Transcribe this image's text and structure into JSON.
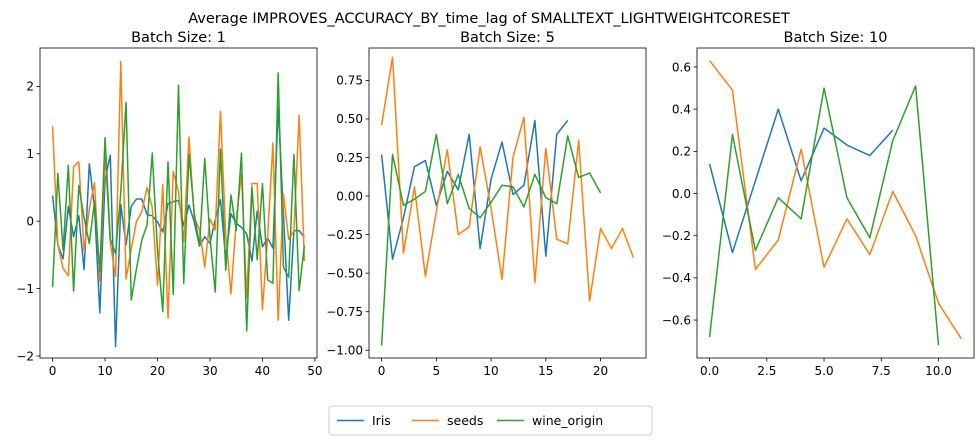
{
  "chart_data": {
    "type": "line",
    "title": "Average IMPROVES_ACCURACY_BY_time_lag of SMALLTEXT_LIGHTWEIGHTCORESET",
    "series_styles": [
      {
        "name": "Iris",
        "color": "#1f77b4"
      },
      {
        "name": "seeds",
        "color": "#ff7f0e"
      },
      {
        "name": "wine_origin",
        "color": "#2ca02c"
      }
    ],
    "legend_placement": "bottom-center",
    "grid": false,
    "subplots": [
      {
        "title": "Batch Size: 1",
        "xlim": [
          -2.4,
          50.4
        ],
        "ylim": [
          -2.03,
          2.57
        ],
        "xticks": [
          0,
          10,
          20,
          30,
          40,
          50
        ],
        "xtick_labels": [
          "0",
          "10",
          "20",
          "30",
          "40",
          "50"
        ],
        "yticks": [
          -2,
          -1,
          0,
          1,
          2
        ],
        "ytick_labels": [
          "−2",
          "−1",
          "0",
          "1",
          "2"
        ],
        "series": [
          {
            "name": "Iris",
            "x": [
              0,
              1,
              2,
              3,
              4,
              5,
              6,
              7,
              8,
              9,
              10,
              11,
              12,
              13,
              14,
              15,
              16,
              17,
              18,
              19,
              20,
              21,
              22,
              23,
              24,
              25,
              26,
              27,
              28,
              29,
              30,
              31,
              32,
              33,
              34,
              35,
              36,
              37,
              38,
              39,
              40,
              41,
              42,
              43,
              44,
              45,
              46,
              47,
              48
            ],
            "y": [
              0.38,
              -0.35,
              -0.56,
              0.22,
              -0.23,
              0.08,
              -0.72,
              0.85,
              0.2,
              -1.36,
              0.62,
              0.98,
              -1.86,
              0.25,
              -0.35,
              0.22,
              0.33,
              0.33,
              0.1,
              0.08,
              -0.01,
              -0.16,
              0.26,
              0.29,
              0.31,
              -0.07,
              0.24,
              -0.01,
              -0.37,
              -0.23,
              -0.33,
              0.02,
              0.32,
              -0.56,
              0.11,
              -0.03,
              -0.09,
              -0.19,
              -0.59,
              0.15,
              -0.38,
              -0.25,
              -0.4,
              1.7,
              0.12,
              -1.47,
              -0.14,
              -0.14,
              -0.24
            ]
          },
          {
            "name": "seeds",
            "x": [
              0,
              1,
              2,
              3,
              4,
              5,
              6,
              7,
              8,
              9,
              10,
              11,
              12,
              13,
              14,
              15,
              16,
              17,
              18,
              19,
              20,
              21,
              22,
              23,
              24,
              25,
              26,
              27,
              28,
              29,
              30,
              31,
              32,
              33,
              34,
              35,
              36,
              37,
              38,
              39,
              40,
              41,
              42,
              43,
              44,
              45,
              46,
              47,
              48
            ],
            "y": [
              1.41,
              -0.35,
              -0.7,
              -0.81,
              0.81,
              0.88,
              -0.44,
              0.18,
              0.57,
              -0.89,
              1.0,
              -0.32,
              -0.82,
              2.37,
              -0.86,
              -0.41,
              0.0,
              0.14,
              0.5,
              0.2,
              -0.95,
              0.54,
              -1.44,
              0.74,
              0.44,
              -0.3,
              1.25,
              0.05,
              -0.12,
              -0.68,
              0.03,
              -0.13,
              1.63,
              -0.2,
              -1.08,
              0.0,
              0.71,
              -1.13,
              0.56,
              0.56,
              -1.31,
              -0.23,
              1.16,
              -1.47,
              0.4,
              -0.27,
              -0.14,
              1.57,
              -0.59
            ]
          },
          {
            "name": "wine_origin",
            "x": [
              0,
              1,
              2,
              3,
              4,
              5,
              6,
              7,
              8,
              9,
              10,
              11,
              12,
              13,
              14,
              15,
              16,
              17,
              18,
              19,
              20,
              21,
              22,
              23,
              24,
              25,
              26,
              27,
              28,
              29,
              30,
              31,
              32,
              33,
              34,
              35,
              36,
              37,
              38,
              39,
              40,
              41,
              42,
              43,
              44,
              45,
              46,
              47,
              48
            ],
            "y": [
              -0.98,
              0.71,
              -0.43,
              0.83,
              -1.04,
              0.53,
              0.05,
              -0.33,
              0.3,
              -0.75,
              1.24,
              -0.27,
              -0.48,
              0.43,
              1.76,
              -1.17,
              -0.7,
              -0.28,
              -0.06,
              1.01,
              -0.44,
              -1.34,
              0.88,
              -1.09,
              2.02,
              -0.92,
              0.99,
              0.12,
              -0.36,
              0.93,
              -0.24,
              -1.05,
              1.07,
              -0.73,
              0.39,
              -0.14,
              1.01,
              -1.63,
              0.5,
              -0.57,
              0.56,
              -0.87,
              -0.92,
              2.2,
              -0.68,
              -0.83,
              0.99,
              -1.03,
              -0.36
            ]
          }
        ]
      },
      {
        "title": "Batch Size: 5",
        "xlim": [
          -1.15,
          24.15
        ],
        "ylim": [
          -1.05,
          0.96
        ],
        "xticks": [
          0,
          5,
          10,
          15,
          20
        ],
        "xtick_labels": [
          "0",
          "5",
          "10",
          "15",
          "20"
        ],
        "yticks": [
          -1.0,
          -0.75,
          -0.5,
          -0.25,
          0.0,
          0.25,
          0.5,
          0.75
        ],
        "ytick_labels": [
          "−1.00",
          "−0.75",
          "−0.50",
          "−0.25",
          "0.00",
          "0.25",
          "0.50",
          "0.75"
        ],
        "series": [
          {
            "name": "Iris",
            "x": [
              0,
              1,
              2,
              3,
              4,
              5,
              6,
              7,
              8,
              9,
              10,
              11,
              12,
              13,
              14,
              15,
              16,
              17
            ],
            "y": [
              0.27,
              -0.41,
              -0.14,
              0.19,
              0.23,
              -0.06,
              0.16,
              0.04,
              0.4,
              -0.34,
              0.11,
              0.35,
              0.01,
              0.07,
              0.49,
              -0.39,
              0.4,
              0.49
            ]
          },
          {
            "name": "seeds",
            "x": [
              0,
              1,
              2,
              3,
              4,
              5,
              6,
              7,
              8,
              9,
              10,
              11,
              12,
              13,
              14,
              15,
              16,
              17,
              18,
              19,
              20,
              21,
              22,
              23
            ],
            "y": [
              0.46,
              0.9,
              -0.37,
              0.06,
              -0.52,
              -0.1,
              0.3,
              -0.25,
              -0.2,
              0.32,
              -0.08,
              -0.54,
              0.25,
              0.51,
              -0.56,
              0.31,
              -0.28,
              -0.31,
              0.36,
              -0.68,
              -0.21,
              -0.34,
              -0.21,
              -0.4
            ]
          },
          {
            "name": "wine_origin",
            "x": [
              0,
              1,
              2,
              3,
              4,
              5,
              6,
              7,
              8,
              9,
              10,
              11,
              12,
              13,
              14,
              15,
              16,
              17,
              18,
              19,
              20
            ],
            "y": [
              -0.97,
              0.27,
              -0.06,
              -0.02,
              0.03,
              0.4,
              -0.05,
              0.14,
              -0.08,
              -0.14,
              -0.04,
              0.07,
              0.06,
              -0.07,
              0.14,
              -0.01,
              -0.05,
              0.39,
              0.12,
              0.15,
              0.02
            ]
          }
        ]
      },
      {
        "title": "Batch Size: 10",
        "xlim": [
          -0.55,
          11.55
        ],
        "ylim": [
          -0.78,
          0.69
        ],
        "xticks": [
          0.0,
          2.5,
          5.0,
          7.5,
          10.0
        ],
        "xtick_labels": [
          "0.0",
          "2.5",
          "5.0",
          "7.5",
          "10.0"
        ],
        "yticks": [
          -0.6,
          -0.4,
          -0.2,
          0.0,
          0.2,
          0.4,
          0.6
        ],
        "ytick_labels": [
          "−0.6",
          "−0.4",
          "−0.2",
          "0.0",
          "0.2",
          "0.4",
          "0.6"
        ],
        "series": [
          {
            "name": "Iris",
            "x": [
              0,
              1,
              2,
              3,
              4,
              5,
              6,
              7,
              8
            ],
            "y": [
              0.14,
              -0.28,
              0.06,
              0.4,
              0.06,
              0.31,
              0.23,
              0.18,
              0.3
            ]
          },
          {
            "name": "seeds",
            "x": [
              0,
              1,
              2,
              3,
              4,
              5,
              6,
              7,
              8,
              9,
              10,
              11
            ],
            "y": [
              0.63,
              0.49,
              -0.36,
              -0.22,
              0.21,
              -0.35,
              -0.12,
              -0.29,
              0.01,
              -0.2,
              -0.52,
              -0.69
            ]
          },
          {
            "name": "wine_origin",
            "x": [
              0,
              1,
              2,
              3,
              4,
              5,
              6,
              7,
              8,
              9,
              10
            ],
            "y": [
              -0.68,
              0.28,
              -0.27,
              -0.02,
              -0.12,
              0.5,
              -0.02,
              -0.21,
              0.25,
              0.51,
              -0.72
            ]
          }
        ]
      }
    ]
  }
}
